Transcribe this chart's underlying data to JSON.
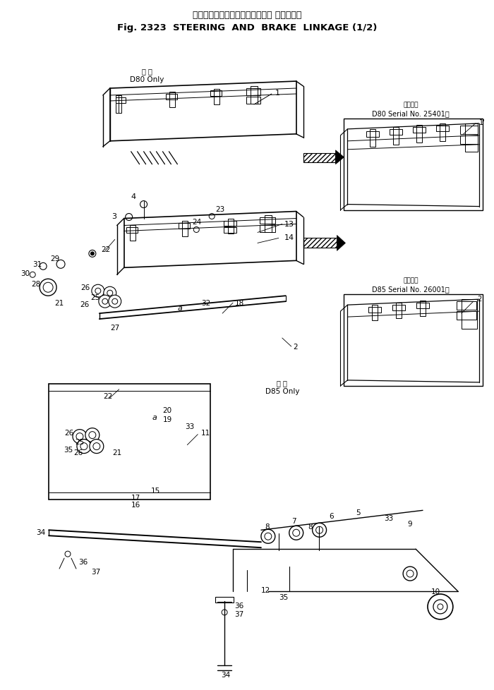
{
  "title_jp": "ステアリング　および　ブレーキ リンケージ",
  "title_en": "Fig. 2323  STEERING  AND  BRAKE  LINKAGE (1/2)",
  "bg_color": "#ffffff",
  "lc": "#000000",
  "fw": 7.0,
  "fh": 9.79,
  "dpi": 100,
  "inset1_jp": "適用号機",
  "inset1_en": "D80 Serial No. 25401～",
  "inset2_jp": "適用号機",
  "inset2_en": "D85 Serial No. 26001～",
  "d80only_jp": "専 用",
  "d80only_en": "D80 Only",
  "d85only_jp": "専 用",
  "d85only_en": "D85 Only"
}
